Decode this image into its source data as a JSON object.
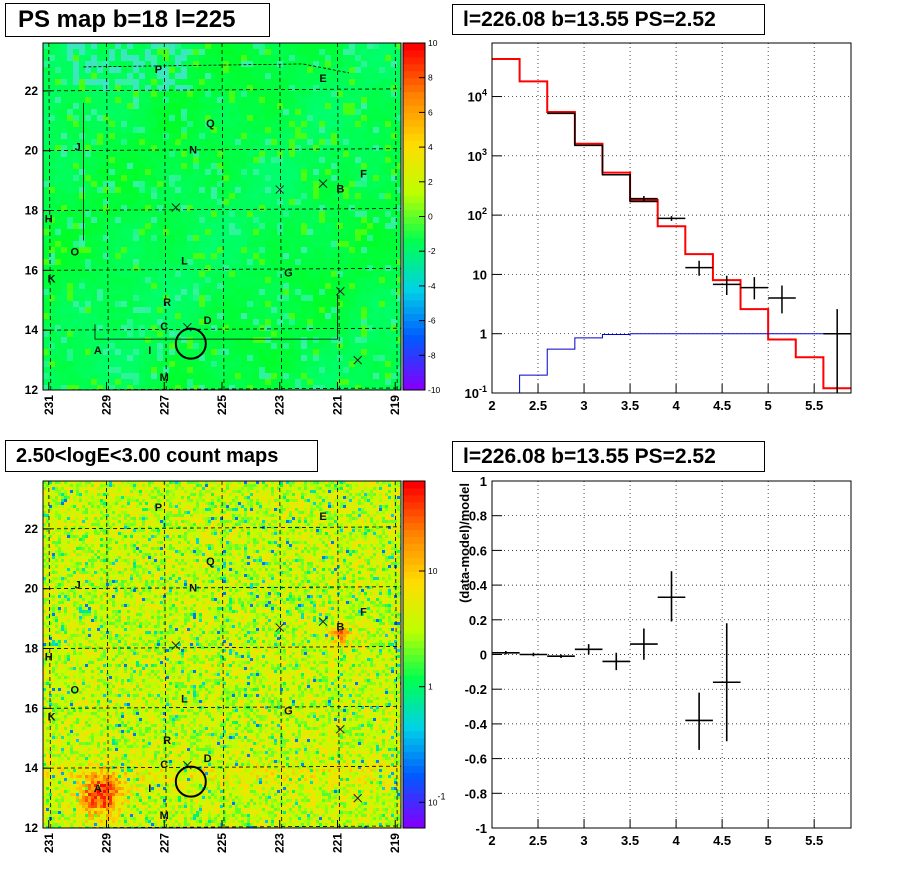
{
  "panels": {
    "ps_map": {
      "title": "PS map b=18 l=225"
    },
    "spectrum": {
      "title": "l=226.08 b=13.55 PS=2.52"
    },
    "count_map": {
      "title": "2.50<logE<3.00 count maps"
    },
    "residual": {
      "title": "l=226.08 b=13.55 PS=2.52"
    }
  },
  "chart_data": [
    {
      "type": "heatmap",
      "panel": "ps_map",
      "title": "PS map b=18 l=225",
      "x_ticks": [
        "231",
        "229",
        "227",
        "225",
        "223",
        "221",
        "219"
      ],
      "x_tick_values": [
        231,
        229,
        227,
        225,
        223,
        221,
        219
      ],
      "y_ticks": [
        "12",
        "14",
        "16",
        "18",
        "20",
        "22"
      ],
      "y_tick_values": [
        12,
        14,
        16,
        18,
        20,
        22
      ],
      "xlim": [
        231.2,
        218.8
      ],
      "ylim": [
        12,
        23.6
      ],
      "colorbar": {
        "scale": "linear",
        "range": [
          -10,
          10
        ],
        "ticks": [
          "-10",
          "-8",
          "-6",
          "-4",
          "-2",
          "0",
          "2",
          "4",
          "6",
          "8",
          "10"
        ],
        "tick_values": [
          -10,
          -8,
          -6,
          -4,
          -2,
          0,
          2,
          4,
          6,
          8,
          10
        ]
      },
      "dominant_value": 1,
      "source_labels": [
        {
          "label": "P",
          "l": 227.2,
          "b": 22.6
        },
        {
          "label": "E",
          "l": 221.5,
          "b": 22.3
        },
        {
          "label": "Q",
          "l": 225.4,
          "b": 20.8
        },
        {
          "label": "J",
          "l": 230.0,
          "b": 20.0
        },
        {
          "label": "N",
          "l": 226.0,
          "b": 19.9
        },
        {
          "label": "F",
          "l": 220.1,
          "b": 19.1
        },
        {
          "label": "B",
          "l": 220.9,
          "b": 18.6
        },
        {
          "label": "H",
          "l": 231.0,
          "b": 17.6
        },
        {
          "label": "O",
          "l": 230.1,
          "b": 16.5
        },
        {
          "label": "L",
          "l": 226.3,
          "b": 16.2
        },
        {
          "label": "G",
          "l": 222.7,
          "b": 15.8
        },
        {
          "label": "K",
          "l": 230.9,
          "b": 15.6
        },
        {
          "label": "R",
          "l": 226.9,
          "b": 14.8
        },
        {
          "label": "D",
          "l": 225.5,
          "b": 14.2
        },
        {
          "label": "C",
          "l": 227.0,
          "b": 14.0
        },
        {
          "label": "A",
          "l": 229.3,
          "b": 13.2
        },
        {
          "label": "I",
          "l": 227.5,
          "b": 13.2
        },
        {
          "label": "M",
          "l": 227.0,
          "b": 12.3
        }
      ],
      "cross_markers": [
        {
          "l": 226.6,
          "b": 18.1
        },
        {
          "l": 223.0,
          "b": 18.7
        },
        {
          "l": 221.5,
          "b": 18.9
        },
        {
          "l": 220.9,
          "b": 15.3
        },
        {
          "l": 226.2,
          "b": 14.1
        },
        {
          "l": 220.3,
          "b": 13.0
        }
      ],
      "circle_marker": {
        "l": 226.08,
        "b": 13.55
      }
    },
    {
      "type": "line",
      "panel": "spectrum",
      "title": "l=226.08 b=13.55 PS=2.52",
      "x_ticks": [
        "2",
        "2.5",
        "3",
        "3.5",
        "4",
        "4.5",
        "5",
        "5.5"
      ],
      "x_tick_values": [
        2,
        2.5,
        3,
        3.5,
        4,
        4.5,
        5,
        5.5
      ],
      "y_scale": "log",
      "y_ticks": [
        "10^-1",
        "1",
        "10",
        "10^2",
        "10^3",
        "10^4"
      ],
      "y_tick_values": [
        0.1,
        1,
        10,
        100,
        1000,
        10000
      ],
      "xlim": [
        2,
        5.9
      ],
      "ylim": [
        0.1,
        80000
      ],
      "grid": true,
      "series": [
        {
          "type": "step",
          "color": "#ff0000",
          "edges": [
            2,
            2.3,
            2.6,
            2.9,
            3.2,
            3.5,
            3.8,
            4.1,
            4.4,
            4.7,
            5.0,
            5.3,
            5.6,
            5.9
          ],
          "values": [
            43000,
            18000,
            5500,
            1600,
            520,
            180,
            65,
            22,
            8,
            2.6,
            0.8,
            0.4,
            0.12
          ]
        },
        {
          "type": "step",
          "color": "#000000",
          "edges": [
            2.6,
            2.9,
            3.2,
            3.5,
            3.8
          ],
          "values": [
            5200,
            1500,
            480,
            170
          ]
        },
        {
          "type": "step",
          "color": "#0000cc",
          "edges": [
            2,
            2.3,
            2.6,
            2.9,
            3.2,
            3.5,
            3.8,
            4.1,
            4.4,
            4.7,
            5.0,
            5.3,
            5.6,
            5.9
          ],
          "values": [
            0.03,
            0.2,
            0.55,
            0.85,
            0.97,
            1.0,
            1.0,
            1.0,
            1.0,
            1.0,
            1.0,
            1.0,
            1.0
          ]
        },
        {
          "type": "errorbar",
          "color": "#000000",
          "points": [
            {
              "x": 3.65,
              "xerr": 0.15,
              "y": 190,
              "ylo": 170,
              "yhi": 210
            },
            {
              "x": 3.95,
              "xerr": 0.15,
              "y": 88,
              "ylo": 80,
              "yhi": 96
            },
            {
              "x": 4.25,
              "xerr": 0.15,
              "y": 13,
              "ylo": 9.5,
              "yhi": 17
            },
            {
              "x": 4.55,
              "xerr": 0.15,
              "y": 6.8,
              "ylo": 4.5,
              "yhi": 9.5
            },
            {
              "x": 4.85,
              "xerr": 0.15,
              "y": 6,
              "ylo": 3.8,
              "yhi": 9
            },
            {
              "x": 5.15,
              "xerr": 0.15,
              "y": 4,
              "ylo": 2.2,
              "yhi": 6.5
            },
            {
              "x": 5.75,
              "xerr": 0.15,
              "y": 1,
              "ylo": 0.1,
              "yhi": 2.6
            }
          ]
        }
      ]
    },
    {
      "type": "heatmap",
      "panel": "count_map",
      "title": "2.50<logE<3.00 count maps",
      "x_ticks": [
        "231",
        "229",
        "227",
        "225",
        "223",
        "221",
        "219"
      ],
      "x_tick_values": [
        231,
        229,
        227,
        225,
        223,
        221,
        219
      ],
      "y_ticks": [
        "12",
        "14",
        "16",
        "18",
        "20",
        "22"
      ],
      "y_tick_values": [
        12,
        14,
        16,
        18,
        20,
        22
      ],
      "xlim": [
        231.2,
        218.8
      ],
      "ylim": [
        12,
        23.6
      ],
      "colorbar": {
        "scale": "log",
        "range": [
          0.06,
          60
        ],
        "ticks": [
          "10^-1",
          "1",
          "10"
        ],
        "tick_values": [
          0.1,
          1,
          10
        ]
      },
      "hotspots": [
        {
          "label": "A",
          "l": 229.2,
          "b": 13.1,
          "peak": "red"
        },
        {
          "label": "B",
          "l": 220.9,
          "b": 18.5,
          "peak": "orange"
        }
      ],
      "source_labels": [
        {
          "label": "P",
          "l": 227.2,
          "b": 22.6
        },
        {
          "label": "E",
          "l": 221.5,
          "b": 22.3
        },
        {
          "label": "Q",
          "l": 225.4,
          "b": 20.8
        },
        {
          "label": "J",
          "l": 230.0,
          "b": 20.0
        },
        {
          "label": "N",
          "l": 226.0,
          "b": 19.9
        },
        {
          "label": "F",
          "l": 220.1,
          "b": 19.1
        },
        {
          "label": "B",
          "l": 220.9,
          "b": 18.6
        },
        {
          "label": "H",
          "l": 231.0,
          "b": 17.6
        },
        {
          "label": "O",
          "l": 230.1,
          "b": 16.5
        },
        {
          "label": "L",
          "l": 226.3,
          "b": 16.2
        },
        {
          "label": "G",
          "l": 222.7,
          "b": 15.8
        },
        {
          "label": "K",
          "l": 230.9,
          "b": 15.6
        },
        {
          "label": "R",
          "l": 226.9,
          "b": 14.8
        },
        {
          "label": "D",
          "l": 225.5,
          "b": 14.2
        },
        {
          "label": "C",
          "l": 227.0,
          "b": 14.0
        },
        {
          "label": "A",
          "l": 229.3,
          "b": 13.2
        },
        {
          "label": "I",
          "l": 227.5,
          "b": 13.2
        },
        {
          "label": "M",
          "l": 227.0,
          "b": 12.3
        }
      ],
      "cross_markers": [
        {
          "l": 226.6,
          "b": 18.1
        },
        {
          "l": 223.0,
          "b": 18.7
        },
        {
          "l": 221.5,
          "b": 18.9
        },
        {
          "l": 220.9,
          "b": 15.3
        },
        {
          "l": 226.2,
          "b": 14.1
        },
        {
          "l": 220.3,
          "b": 13.0
        }
      ],
      "circle_marker": {
        "l": 226.08,
        "b": 13.55
      }
    },
    {
      "type": "scatter",
      "panel": "residual",
      "title": "l=226.08 b=13.55 PS=2.52",
      "ylabel": "(data-model)/model",
      "x_ticks": [
        "2",
        "2.5",
        "3",
        "3.5",
        "4",
        "4.5",
        "5",
        "5.5"
      ],
      "x_tick_values": [
        2,
        2.5,
        3,
        3.5,
        4,
        4.5,
        5,
        5.5
      ],
      "y_ticks": [
        "-1",
        "-0.8",
        "-0.6",
        "-0.4",
        "-0.2",
        "0",
        "0.2",
        "0.4",
        "0.6",
        "0.8",
        "1"
      ],
      "y_tick_values": [
        -1,
        -0.8,
        -0.6,
        -0.4,
        -0.2,
        0,
        0.2,
        0.4,
        0.6,
        0.8,
        1
      ],
      "xlim": [
        2,
        5.9
      ],
      "ylim": [
        -1,
        1
      ],
      "grid": true,
      "points": [
        {
          "x": 2.15,
          "xerr": 0.15,
          "y": 0.01,
          "ylo": 0.0,
          "yhi": 0.02
        },
        {
          "x": 2.45,
          "xerr": 0.15,
          "y": 0.0,
          "ylo": -0.01,
          "yhi": 0.01
        },
        {
          "x": 2.75,
          "xerr": 0.15,
          "y": -0.01,
          "ylo": -0.02,
          "yhi": 0.0
        },
        {
          "x": 3.05,
          "xerr": 0.15,
          "y": 0.03,
          "ylo": 0.0,
          "yhi": 0.06
        },
        {
          "x": 3.35,
          "xerr": 0.15,
          "y": -0.04,
          "ylo": -0.09,
          "yhi": 0.01
        },
        {
          "x": 3.65,
          "xerr": 0.15,
          "y": 0.06,
          "ylo": -0.03,
          "yhi": 0.15
        },
        {
          "x": 3.95,
          "xerr": 0.15,
          "y": 0.33,
          "ylo": 0.19,
          "yhi": 0.48
        },
        {
          "x": 4.25,
          "xerr": 0.15,
          "y": -0.38,
          "ylo": -0.55,
          "yhi": -0.22
        },
        {
          "x": 4.55,
          "xerr": 0.15,
          "y": -0.16,
          "ylo": -0.5,
          "yhi": 0.18
        }
      ]
    }
  ]
}
